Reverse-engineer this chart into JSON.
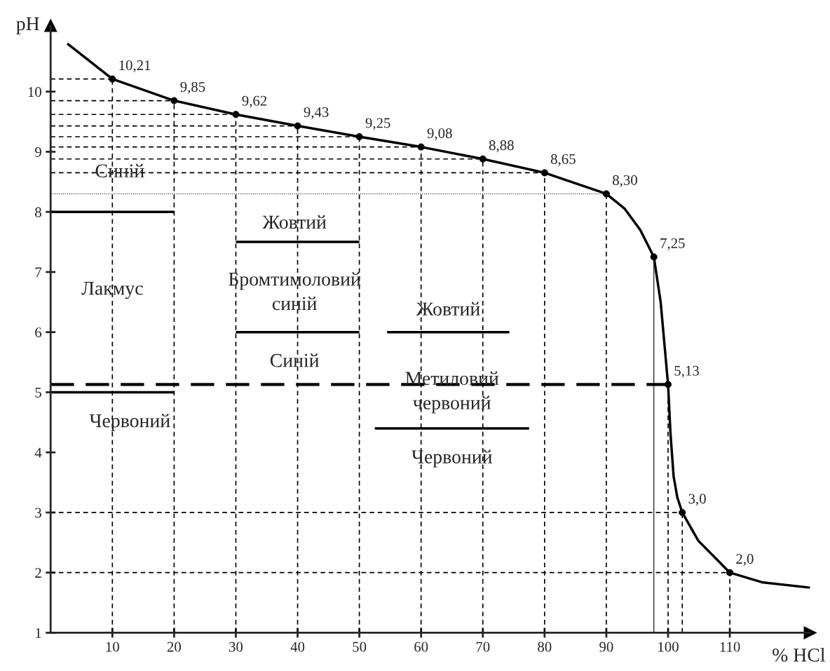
{
  "chart_data": {
    "type": "line",
    "xlabel": "% HCl",
    "ylabel": "pH",
    "xlim": [
      0,
      123
    ],
    "ylim": [
      1,
      11.1
    ],
    "xticks": [
      10,
      20,
      30,
      40,
      50,
      60,
      70,
      80,
      90,
      100,
      110
    ],
    "yticks": [
      1,
      2,
      3,
      4,
      5,
      6,
      7,
      8,
      9,
      10
    ],
    "grid": false,
    "legend": false,
    "series": [
      {
        "type": "line",
        "color": "#000000",
        "marker": "none",
        "line_style": "solid",
        "x": [
          2.7,
          10,
          20,
          30,
          40,
          50,
          60,
          70,
          80,
          90,
          93,
          95.5,
          97.7,
          98.8,
          99.5,
          100,
          100.4,
          100.9,
          101.5,
          102.3,
          104.9,
          110,
          115.2,
          123
        ],
        "values": [
          10.8,
          10.21,
          9.85,
          9.62,
          9.43,
          9.25,
          9.08,
          8.88,
          8.65,
          8.3,
          8.05,
          7.7,
          7.25,
          6.5,
          5.7,
          5.13,
          4.3,
          3.6,
          3.25,
          3.0,
          2.53,
          2.0,
          1.84,
          1.75
        ]
      },
      {
        "type": "scatter",
        "color": "#000000",
        "marker": "circle",
        "x": [
          10,
          20,
          30,
          40,
          50,
          60,
          70,
          80,
          90,
          97.7,
          100,
          102.3,
          110
        ],
        "values": [
          10.21,
          9.85,
          9.62,
          9.43,
          9.25,
          9.08,
          8.88,
          8.65,
          8.3,
          7.25,
          5.13,
          3.0,
          2.0
        ],
        "value_labels": [
          "10,21",
          "9,85",
          "9,62",
          "9,43",
          "9,25",
          "9,08",
          "8,88",
          "8,65",
          "8,30",
          "7,25",
          "5,13",
          "3,0",
          "2,0"
        ]
      },
      {
        "type": "line",
        "color": "#000000",
        "marker": "none",
        "line_style": "dashed",
        "x": [
          0,
          100
        ],
        "values": [
          5.13,
          5.13
        ]
      },
      {
        "type": "line",
        "color": "#000000",
        "marker": "none",
        "line_style": "solid",
        "x": [
          0,
          20
        ],
        "values": [
          8,
          8
        ]
      },
      {
        "type": "line",
        "color": "#000000",
        "marker": "none",
        "line_style": "solid",
        "x": [
          0,
          20
        ],
        "values": [
          5,
          5
        ]
      },
      {
        "type": "line",
        "color": "#000000",
        "marker": "none",
        "line_style": "solid",
        "x": [
          30,
          50
        ],
        "values": [
          7.5,
          7.5
        ]
      },
      {
        "type": "line",
        "color": "#000000",
        "marker": "none",
        "line_style": "solid",
        "x": [
          30,
          50
        ],
        "values": [
          6,
          6
        ]
      },
      {
        "type": "line",
        "color": "#000000",
        "marker": "none",
        "line_style": "solid",
        "x": [
          54.5,
          74.3
        ],
        "values": [
          6,
          6
        ]
      },
      {
        "type": "line",
        "color": "#000000",
        "marker": "none",
        "line_style": "solid",
        "x": [
          52.5,
          77.5
        ],
        "values": [
          4.4,
          4.4
        ]
      }
    ],
    "ref_lines": [
      {
        "axis": "y",
        "value": 10.21,
        "line_style": "dashed"
      },
      {
        "axis": "y",
        "value": 9.85,
        "line_style": "dashed"
      },
      {
        "axis": "y",
        "value": 9.62,
        "line_style": "dashed"
      },
      {
        "axis": "y",
        "value": 9.43,
        "line_style": "dashed"
      },
      {
        "axis": "y",
        "value": 9.25,
        "line_style": "dashed"
      },
      {
        "axis": "y",
        "value": 9.08,
        "line_style": "dashed"
      },
      {
        "axis": "y",
        "value": 8.88,
        "line_style": "dashed"
      },
      {
        "axis": "y",
        "value": 8.65,
        "line_style": "dashed"
      },
      {
        "axis": "y",
        "value": 8.3,
        "line_style": "dotted"
      },
      {
        "axis": "y",
        "value": 3.0,
        "line_style": "dashed"
      },
      {
        "axis": "y",
        "value": 2.0,
        "line_style": "dashed"
      },
      {
        "axis": "x",
        "value": 10,
        "line_style": "dashed"
      },
      {
        "axis": "x",
        "value": 20,
        "line_style": "dashed"
      },
      {
        "axis": "x",
        "value": 30,
        "line_style": "dashed"
      },
      {
        "axis": "x",
        "value": 40,
        "line_style": "dashed"
      },
      {
        "axis": "x",
        "value": 50,
        "line_style": "dashed"
      },
      {
        "axis": "x",
        "value": 60,
        "line_style": "dashed"
      },
      {
        "axis": "x",
        "value": 70,
        "line_style": "dashed"
      },
      {
        "axis": "x",
        "value": 80,
        "line_style": "dashed"
      },
      {
        "axis": "x",
        "value": 90,
        "line_style": "dashed"
      },
      {
        "axis": "x",
        "value": 97.7,
        "line_style": "solid"
      },
      {
        "axis": "x",
        "value": 100,
        "line_style": "dashed"
      },
      {
        "axis": "x",
        "value": 102.3,
        "line_style": "dashed"
      },
      {
        "axis": "x",
        "value": 110,
        "line_style": "dashed"
      }
    ],
    "annotations": [
      {
        "text": "Синій",
        "x": 11.2,
        "y": 8.33
      },
      {
        "text": "Лакмус",
        "x": 10,
        "y": 6.7
      },
      {
        "text": "Червоний",
        "x": 10,
        "y": 5
      },
      {
        "text": "Жовтий",
        "x": 39.5,
        "y": 7.8
      },
      {
        "text": "Бромтимоловий\nсиній",
        "x": 39.5,
        "y": 6.65
      },
      {
        "text": "Синій",
        "x": 39.5,
        "y": 5.5
      },
      {
        "text": "Жовтий",
        "x": 64.4,
        "y": 6
      },
      {
        "text": "Метиловий\nчервоний",
        "x": 65,
        "y": 4.4
      },
      {
        "text": "Червоний",
        "x": 65,
        "y": 4.4
      }
    ]
  }
}
